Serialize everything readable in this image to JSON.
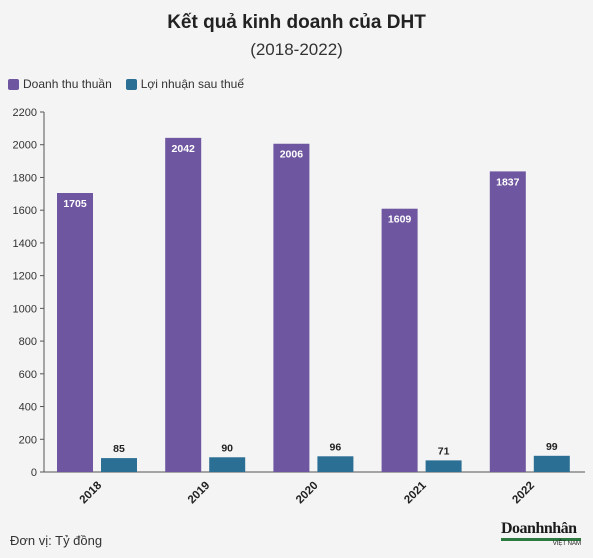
{
  "title": "Kết quả kinh doanh của DHT",
  "subtitle": "(2018-2022)",
  "footer_note": "Đơn vị: Tỷ đồng",
  "logo": {
    "main": "Doanhnhân",
    "sub": "VIỆT NAM"
  },
  "colors": {
    "revenue": "#6e57a0",
    "profit": "#2c6f95",
    "background": "#f4f4f4"
  },
  "chart_data": {
    "type": "bar",
    "categories": [
      "2018",
      "2019",
      "2020",
      "2021",
      "2022"
    ],
    "series": [
      {
        "name": "Doanh thu thuần",
        "values": [
          1705,
          2042,
          2006,
          1609,
          1837
        ]
      },
      {
        "name": "Lợi nhuận sau thuế",
        "values": [
          85,
          90,
          96,
          71,
          99
        ]
      }
    ],
    "ylim": [
      0,
      2200
    ],
    "yticks": [
      0,
      200,
      400,
      600,
      800,
      1000,
      1200,
      1400,
      1600,
      1800,
      2000,
      2200
    ],
    "legend": "top-left",
    "grid": false
  }
}
